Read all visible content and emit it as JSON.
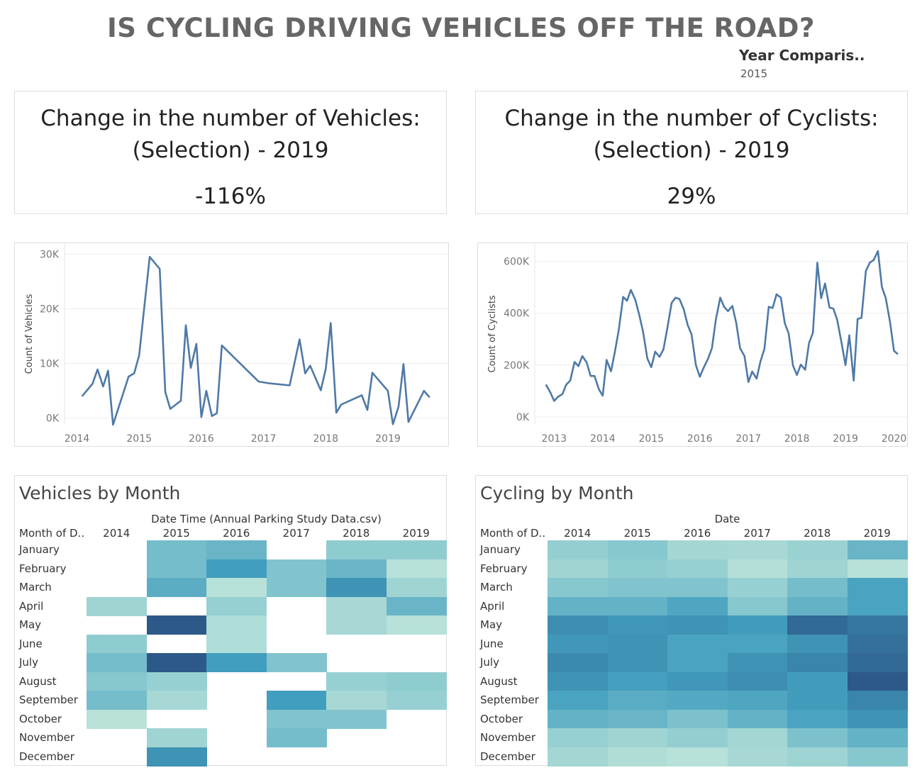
{
  "title": "IS CYCLING DRIVING VEHICLES OFF THE ROAD?",
  "year_comparison": {
    "label": "Year Comparis..",
    "value": "2015"
  },
  "kpis": {
    "vehicles": {
      "line1": "Change in the number of Vehicles:",
      "line2": "(Selection) - 2019",
      "value": "-116%"
    },
    "cyclists": {
      "line1": "Change in the number of Cyclists:",
      "line2": "(Selection) - 2019",
      "value": "29%"
    }
  },
  "colors": {
    "line": "#4e79a7",
    "grid": "#eeeeee",
    "axis_text": "#777777",
    "heat_low": "#c7e9dc",
    "heat_high": "#2a4e7f"
  },
  "chart_data": [
    {
      "type": "line",
      "name": "vehicles_line",
      "ylabel": "Count of Vehicles",
      "ylim": [
        -1200,
        32000
      ],
      "xlim": [
        2013.8,
        2019.97
      ],
      "x_ticks": [
        2014,
        2015,
        2016,
        2017,
        2018,
        2019
      ],
      "y_ticks": [
        0,
        10000,
        20000,
        30000
      ],
      "y_tick_labels": [
        "0K",
        "10K",
        "20K",
        "30K"
      ],
      "grid": true,
      "points": [
        [
          2014.08,
          4000
        ],
        [
          2014.25,
          6300
        ],
        [
          2014.33,
          8900
        ],
        [
          2014.42,
          5800
        ],
        [
          2014.5,
          8700
        ],
        [
          2014.58,
          -1200
        ],
        [
          2014.83,
          7600
        ],
        [
          2014.92,
          8200
        ],
        [
          2015.0,
          11500
        ],
        [
          2015.08,
          20000
        ],
        [
          2015.17,
          29500
        ],
        [
          2015.33,
          27300
        ],
        [
          2015.42,
          4800
        ],
        [
          2015.5,
          1700
        ],
        [
          2015.67,
          3200
        ],
        [
          2015.75,
          17000
        ],
        [
          2015.83,
          9200
        ],
        [
          2015.92,
          13600
        ],
        [
          2016.0,
          200
        ],
        [
          2016.08,
          5000
        ],
        [
          2016.17,
          400
        ],
        [
          2016.25,
          900
        ],
        [
          2016.33,
          13300
        ],
        [
          2016.92,
          6700
        ],
        [
          2017.08,
          6400
        ],
        [
          2017.42,
          6000
        ],
        [
          2017.58,
          14400
        ],
        [
          2017.67,
          8200
        ],
        [
          2017.75,
          9600
        ],
        [
          2017.92,
          5100
        ],
        [
          2018.0,
          9000
        ],
        [
          2018.08,
          17400
        ],
        [
          2018.17,
          1000
        ],
        [
          2018.25,
          2500
        ],
        [
          2018.58,
          4200
        ],
        [
          2018.67,
          1500
        ],
        [
          2018.75,
          8300
        ],
        [
          2019.0,
          5000
        ],
        [
          2019.08,
          -1100
        ],
        [
          2019.17,
          2100
        ],
        [
          2019.25,
          9900
        ],
        [
          2019.33,
          -700
        ],
        [
          2019.58,
          5000
        ],
        [
          2019.67,
          3800
        ]
      ]
    },
    {
      "type": "line",
      "name": "cyclists_line",
      "ylabel": "Count of Cyclists",
      "ylim": [
        -30000,
        670000
      ],
      "xlim": [
        2012.6,
        2020.27
      ],
      "x_ticks": [
        2013,
        2014,
        2015,
        2016,
        2017,
        2018,
        2019,
        2020
      ],
      "y_ticks": [
        0,
        200000,
        400000,
        600000
      ],
      "y_tick_labels": [
        "0K",
        "200K",
        "400K",
        "600K"
      ],
      "grid": true,
      "points": [
        [
          2012.83,
          125000
        ],
        [
          2012.92,
          95000
        ],
        [
          2013.0,
          62000
        ],
        [
          2013.08,
          78000
        ],
        [
          2013.17,
          88000
        ],
        [
          2013.25,
          125000
        ],
        [
          2013.33,
          140000
        ],
        [
          2013.42,
          212000
        ],
        [
          2013.5,
          196000
        ],
        [
          2013.58,
          235000
        ],
        [
          2013.67,
          210000
        ],
        [
          2013.75,
          158000
        ],
        [
          2013.83,
          158000
        ],
        [
          2013.92,
          107000
        ],
        [
          2014.0,
          82000
        ],
        [
          2014.08,
          220000
        ],
        [
          2014.17,
          176000
        ],
        [
          2014.25,
          250000
        ],
        [
          2014.33,
          335000
        ],
        [
          2014.42,
          463000
        ],
        [
          2014.5,
          448000
        ],
        [
          2014.58,
          490000
        ],
        [
          2014.67,
          452000
        ],
        [
          2014.75,
          395000
        ],
        [
          2014.83,
          330000
        ],
        [
          2014.92,
          225000
        ],
        [
          2015.0,
          192000
        ],
        [
          2015.08,
          252000
        ],
        [
          2015.17,
          232000
        ],
        [
          2015.25,
          260000
        ],
        [
          2015.33,
          342000
        ],
        [
          2015.42,
          440000
        ],
        [
          2015.5,
          460000
        ],
        [
          2015.58,
          455000
        ],
        [
          2015.67,
          415000
        ],
        [
          2015.75,
          355000
        ],
        [
          2015.83,
          318000
        ],
        [
          2015.92,
          200000
        ],
        [
          2016.0,
          155000
        ],
        [
          2016.08,
          190000
        ],
        [
          2016.17,
          225000
        ],
        [
          2016.25,
          265000
        ],
        [
          2016.33,
          375000
        ],
        [
          2016.42,
          460000
        ],
        [
          2016.5,
          425000
        ],
        [
          2016.58,
          408000
        ],
        [
          2016.67,
          428000
        ],
        [
          2016.75,
          362000
        ],
        [
          2016.83,
          265000
        ],
        [
          2016.92,
          235000
        ],
        [
          2017.0,
          135000
        ],
        [
          2017.08,
          175000
        ],
        [
          2017.17,
          148000
        ],
        [
          2017.25,
          215000
        ],
        [
          2017.33,
          262000
        ],
        [
          2017.42,
          425000
        ],
        [
          2017.5,
          420000
        ],
        [
          2017.58,
          473000
        ],
        [
          2017.67,
          460000
        ],
        [
          2017.75,
          362000
        ],
        [
          2017.83,
          322000
        ],
        [
          2017.92,
          198000
        ],
        [
          2018.0,
          162000
        ],
        [
          2018.08,
          202000
        ],
        [
          2018.17,
          182000
        ],
        [
          2018.25,
          285000
        ],
        [
          2018.33,
          325000
        ],
        [
          2018.42,
          595000
        ],
        [
          2018.5,
          458000
        ],
        [
          2018.58,
          515000
        ],
        [
          2018.67,
          422000
        ],
        [
          2018.75,
          418000
        ],
        [
          2018.83,
          375000
        ],
        [
          2018.92,
          285000
        ],
        [
          2019.0,
          200000
        ],
        [
          2019.08,
          315000
        ],
        [
          2019.17,
          140000
        ],
        [
          2019.25,
          378000
        ],
        [
          2019.33,
          382000
        ],
        [
          2019.42,
          562000
        ],
        [
          2019.5,
          595000
        ],
        [
          2019.58,
          605000
        ],
        [
          2019.67,
          640000
        ],
        [
          2019.75,
          502000
        ],
        [
          2019.83,
          458000
        ],
        [
          2019.92,
          365000
        ],
        [
          2020.0,
          255000
        ],
        [
          2020.08,
          242000
        ]
      ]
    },
    {
      "type": "heatmap",
      "name": "vehicles_heatmap",
      "title": "Vehicles by Month",
      "xlabel": "Date Time (Annual Parking Study Data.csv)",
      "row_header": "Month of D..",
      "columns": [
        "2014",
        "2015",
        "2016",
        "2017",
        "2018",
        "2019"
      ],
      "rows": [
        "January",
        "February",
        "March",
        "April",
        "May",
        "June",
        "July",
        "August",
        "September",
        "October",
        "November",
        "December"
      ],
      "values": [
        [
          null,
          0.45,
          0.5,
          null,
          0.35,
          0.35
        ],
        [
          null,
          0.45,
          0.65,
          0.4,
          0.5,
          0.1
        ],
        [
          null,
          0.55,
          0.1,
          0.4,
          0.7,
          0.25
        ],
        [
          0.25,
          null,
          0.3,
          null,
          0.2,
          0.5
        ],
        [
          null,
          0.95,
          0.15,
          null,
          0.2,
          0.1
        ],
        [
          0.35,
          null,
          0.15,
          null,
          null,
          null
        ],
        [
          0.45,
          0.95,
          0.65,
          0.4,
          null,
          null
        ],
        [
          0.38,
          0.3,
          null,
          null,
          0.3,
          0.35
        ],
        [
          0.45,
          0.2,
          null,
          0.65,
          0.2,
          0.3
        ],
        [
          0.08,
          null,
          null,
          0.4,
          0.4,
          null
        ],
        [
          null,
          0.25,
          null,
          0.45,
          null,
          null
        ],
        [
          null,
          0.7,
          null,
          null,
          null,
          null
        ]
      ]
    },
    {
      "type": "heatmap",
      "name": "cycling_heatmap",
      "title": "Cycling by Month",
      "xlabel": "Date",
      "row_header": "Month of D..",
      "columns": [
        "2014",
        "2015",
        "2016",
        "2017",
        "2018",
        "2019"
      ],
      "rows": [
        "January",
        "February",
        "March",
        "April",
        "May",
        "June",
        "July",
        "August",
        "September",
        "October",
        "November",
        "December"
      ],
      "values": [
        [
          0.32,
          0.38,
          0.22,
          0.2,
          0.28,
          0.5
        ],
        [
          0.25,
          0.35,
          0.3,
          0.12,
          0.25,
          0.1
        ],
        [
          0.38,
          0.4,
          0.4,
          0.3,
          0.45,
          0.62
        ],
        [
          0.52,
          0.52,
          0.6,
          0.38,
          0.52,
          0.62
        ],
        [
          0.72,
          0.68,
          0.7,
          0.66,
          0.88,
          0.82
        ],
        [
          0.68,
          0.7,
          0.62,
          0.62,
          0.7,
          0.85
        ],
        [
          0.74,
          0.7,
          0.62,
          0.7,
          0.76,
          0.88
        ],
        [
          0.7,
          0.64,
          0.68,
          0.72,
          0.66,
          0.95
        ],
        [
          0.62,
          0.56,
          0.58,
          0.6,
          0.66,
          0.76
        ],
        [
          0.52,
          0.5,
          0.42,
          0.52,
          0.62,
          0.7
        ],
        [
          0.3,
          0.25,
          0.32,
          0.22,
          0.42,
          0.52
        ],
        [
          0.22,
          0.14,
          0.1,
          0.2,
          0.26,
          0.38
        ]
      ]
    }
  ]
}
